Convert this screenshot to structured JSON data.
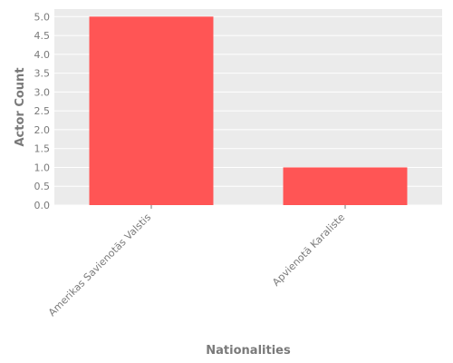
{
  "chart_data": {
    "type": "bar",
    "categories": [
      "Amerikas Savienotās Valstis",
      "Apvienotā Karaliste"
    ],
    "values": [
      5.0,
      1.0
    ],
    "title": "",
    "xlabel": "Nationalities",
    "ylabel": "Actor Count",
    "ylim": [
      0,
      5.2
    ],
    "yticks": [
      "0.0",
      "0.5",
      "1.0",
      "1.5",
      "2.0",
      "2.5",
      "3.0",
      "3.5",
      "4.0",
      "4.5",
      "5.0"
    ],
    "grid": true,
    "bar_color": "#ff5555",
    "background_color": "#ebebeb",
    "grid_color": "#ffffff"
  }
}
